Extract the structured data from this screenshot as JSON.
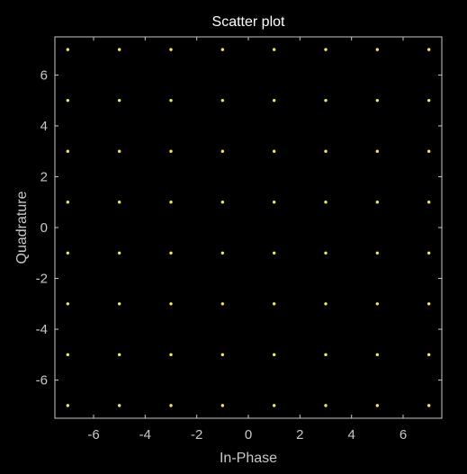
{
  "chart_data": {
    "type": "scatter",
    "title": "Scatter plot",
    "xlabel": "In-Phase",
    "ylabel": "Quadrature",
    "xlim": [
      -7.5,
      7.5
    ],
    "ylim": [
      -7.5,
      7.5
    ],
    "xticks": [
      -6,
      -4,
      -2,
      0,
      2,
      4,
      6
    ],
    "yticks": [
      -6,
      -4,
      -2,
      0,
      2,
      4,
      6
    ],
    "grid": false,
    "legend": "none",
    "x": [
      -7,
      -5,
      -3,
      -1,
      1,
      3,
      5,
      7,
      -7,
      -5,
      -3,
      -1,
      1,
      3,
      5,
      7,
      -7,
      -5,
      -3,
      -1,
      1,
      3,
      5,
      7,
      -7,
      -5,
      -3,
      -1,
      1,
      3,
      5,
      7,
      -7,
      -5,
      -3,
      -1,
      1,
      3,
      5,
      7,
      -7,
      -5,
      -3,
      -1,
      1,
      3,
      5,
      7,
      -7,
      -5,
      -3,
      -1,
      1,
      3,
      5,
      7,
      -7,
      -5,
      -3,
      -1,
      1,
      3,
      5,
      7
    ],
    "y": [
      7,
      7,
      7,
      7,
      7,
      7,
      7,
      7,
      5,
      5,
      5,
      5,
      5,
      5,
      5,
      5,
      3,
      3,
      3,
      3,
      3,
      3,
      3,
      3,
      1,
      1,
      1,
      1,
      1,
      1,
      1,
      1,
      -1,
      -1,
      -1,
      -1,
      -1,
      -1,
      -1,
      -1,
      -3,
      -3,
      -3,
      -3,
      -3,
      -3,
      -3,
      -3,
      -5,
      -5,
      -5,
      -5,
      -5,
      -5,
      -5,
      -5,
      -7,
      -7,
      -7,
      -7,
      -7,
      -7,
      -7,
      -7
    ],
    "colors": {
      "background": "#000000",
      "axes": "#c8c8c8",
      "text": "#ffffff",
      "ticklabels": "#c8c8c8",
      "marker": "#f2e85a"
    }
  }
}
